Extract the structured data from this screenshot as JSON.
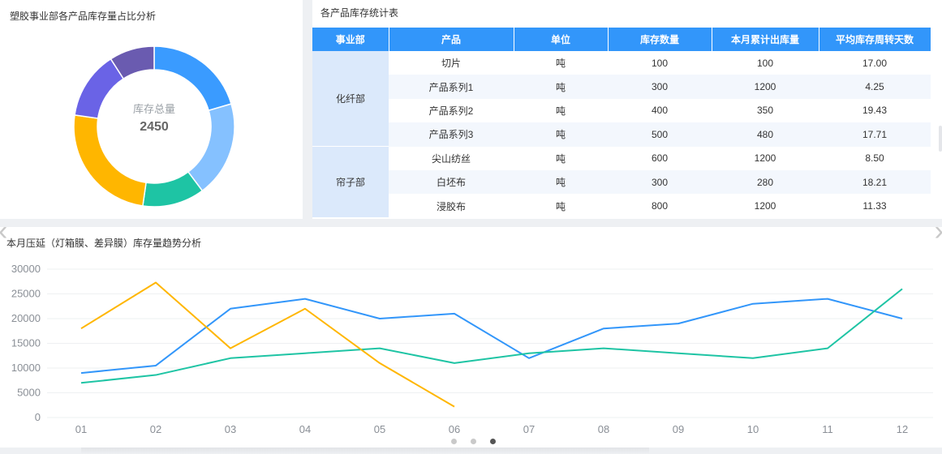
{
  "donut_panel": {
    "title": "塑胶事业部各产品库存量占比分析",
    "center_title": "库存总量",
    "center_value": "2450",
    "chart_data": {
      "type": "pie",
      "series": [
        {
          "name": "",
          "value": 18,
          "color": "#3a9bff"
        },
        {
          "name": "",
          "value": 17,
          "color": "#85c1ff"
        },
        {
          "name": "",
          "value": 11,
          "color": "#1ec4a4"
        },
        {
          "name": "",
          "value": 22,
          "color": "#ffb600"
        },
        {
          "name": "",
          "value": 12,
          "color": "#6a63e6"
        },
        {
          "name": "",
          "value": 8,
          "color": "#6a5bb0"
        }
      ]
    }
  },
  "table_panel": {
    "title": "各产品库存统计表",
    "headers": [
      "事业部",
      "产品",
      "单位",
      "库存数量",
      "本月累计出库量",
      "平均库存周转天数"
    ],
    "groups": [
      {
        "name": "化纤部",
        "rows": [
          [
            "切片",
            "吨",
            "100",
            "100",
            "17.00"
          ],
          [
            "产品系列1",
            "吨",
            "300",
            "1200",
            "4.25"
          ],
          [
            "产品系列2",
            "吨",
            "400",
            "350",
            "19.43"
          ],
          [
            "产品系列3",
            "吨",
            "500",
            "480",
            "17.71"
          ]
        ]
      },
      {
        "name": "帘子部",
        "rows": [
          [
            "尖山纺丝",
            "吨",
            "600",
            "1200",
            "8.50"
          ],
          [
            "白坯布",
            "吨",
            "300",
            "280",
            "18.21"
          ],
          [
            "浸胶布",
            "吨",
            "800",
            "1200",
            "11.33"
          ]
        ]
      }
    ]
  },
  "trend_panel": {
    "title": "本月压延（灯箱膜、差异膜）库存量趋势分析",
    "chart_data": {
      "type": "line",
      "x": [
        "01",
        "02",
        "03",
        "04",
        "05",
        "06",
        "07",
        "08",
        "09",
        "10",
        "11",
        "12"
      ],
      "ylim": [
        0,
        30000
      ],
      "yticks": [
        0,
        5000,
        10000,
        15000,
        20000,
        25000,
        30000
      ],
      "grid": true,
      "series": [
        {
          "name": "",
          "color": "#3296fa",
          "values": [
            9000,
            10500,
            22000,
            24000,
            20000,
            21000,
            12000,
            18000,
            19000,
            23000,
            24000,
            20000
          ]
        },
        {
          "name": "",
          "color": "#1ec4a4",
          "values": [
            7000,
            8600,
            12000,
            13000,
            14000,
            11000,
            13000,
            14000,
            13000,
            12000,
            14000,
            26000
          ]
        },
        {
          "name": "",
          "color": "#ffb600",
          "values": [
            18000,
            27300,
            14000,
            22000,
            11000,
            2200,
            null,
            null,
            null,
            null,
            null,
            null
          ]
        }
      ]
    }
  },
  "pager": {
    "count": 3,
    "active": 2
  },
  "nav": {
    "prev": "‹",
    "next": "›"
  }
}
